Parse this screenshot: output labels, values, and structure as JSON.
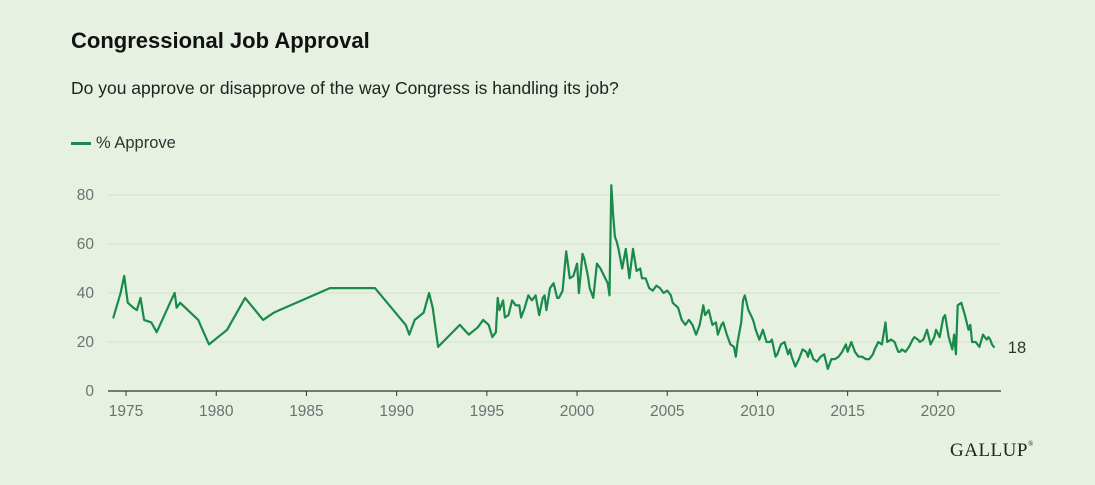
{
  "title": "Congressional Job Approval",
  "subtitle": "Do you approve or disapprove of the way Congress is handling its job?",
  "brand": "GALLUP",
  "colors": {
    "series": "#1a8a4a",
    "grid": "#d4e0d1",
    "axis": "#707070",
    "background": "#e6f1e2"
  },
  "chart_data": {
    "type": "line",
    "xlim": [
      1974,
      2023.5
    ],
    "ylim": [
      0,
      80
    ],
    "x_ticks": [
      "1975",
      "1980",
      "1985",
      "1990",
      "1995",
      "2000",
      "2005",
      "2010",
      "2015",
      "2020"
    ],
    "y_ticks": [
      "0",
      "20",
      "40",
      "60",
      "80"
    ],
    "grid": true,
    "legend_position": "top-left",
    "end_label": "18",
    "series": [
      {
        "name": "% Approve",
        "points": [
          [
            1974.3,
            30
          ],
          [
            1974.7,
            40
          ],
          [
            1974.9,
            47
          ],
          [
            1975.1,
            36
          ],
          [
            1975.4,
            34
          ],
          [
            1975.6,
            33
          ],
          [
            1975.8,
            38
          ],
          [
            1976.0,
            29
          ],
          [
            1976.4,
            28
          ],
          [
            1976.7,
            24
          ],
          [
            1977.5,
            37
          ],
          [
            1977.7,
            40
          ],
          [
            1977.8,
            34
          ],
          [
            1978.0,
            36
          ],
          [
            1979.0,
            29
          ],
          [
            1979.6,
            19
          ],
          [
            1980.6,
            25
          ],
          [
            1981.6,
            38
          ],
          [
            1982.6,
            29
          ],
          [
            1983.2,
            32
          ],
          [
            1983.5,
            33
          ],
          [
            1986.3,
            42
          ],
          [
            1988.8,
            42
          ],
          [
            1990.5,
            27
          ],
          [
            1990.7,
            23
          ],
          [
            1991.0,
            29
          ],
          [
            1991.5,
            32
          ],
          [
            1991.8,
            40
          ],
          [
            1992.0,
            34
          ],
          [
            1992.3,
            18
          ],
          [
            1993.5,
            27
          ],
          [
            1994.0,
            23
          ],
          [
            1994.5,
            26
          ],
          [
            1994.8,
            29
          ],
          [
            1995.1,
            27
          ],
          [
            1995.3,
            22
          ],
          [
            1995.5,
            24
          ],
          [
            1995.6,
            38
          ],
          [
            1995.7,
            33
          ],
          [
            1995.9,
            37
          ],
          [
            1996.0,
            30
          ],
          [
            1996.2,
            31
          ],
          [
            1996.4,
            37
          ],
          [
            1996.6,
            35
          ],
          [
            1996.8,
            35
          ],
          [
            1996.9,
            30
          ],
          [
            1997.1,
            34
          ],
          [
            1997.3,
            39
          ],
          [
            1997.5,
            37
          ],
          [
            1997.7,
            39
          ],
          [
            1997.9,
            31
          ],
          [
            1998.1,
            38
          ],
          [
            1998.2,
            39
          ],
          [
            1998.3,
            33
          ],
          [
            1998.5,
            42
          ],
          [
            1998.7,
            44
          ],
          [
            1998.9,
            38
          ],
          [
            1999.0,
            38
          ],
          [
            1999.2,
            41
          ],
          [
            1999.4,
            57
          ],
          [
            1999.6,
            46
          ],
          [
            1999.8,
            47
          ],
          [
            2000.0,
            52
          ],
          [
            2000.1,
            40
          ],
          [
            2000.3,
            56
          ],
          [
            2000.4,
            54
          ],
          [
            2000.6,
            47
          ],
          [
            2000.7,
            42
          ],
          [
            2000.9,
            38
          ],
          [
            2001.1,
            52
          ],
          [
            2001.3,
            50
          ],
          [
            2001.5,
            47
          ],
          [
            2001.7,
            44
          ],
          [
            2001.8,
            39
          ],
          [
            2001.9,
            84
          ],
          [
            2002.0,
            72
          ],
          [
            2002.1,
            63
          ],
          [
            2002.2,
            61
          ],
          [
            2002.3,
            58
          ],
          [
            2002.5,
            50
          ],
          [
            2002.7,
            58
          ],
          [
            2002.8,
            52
          ],
          [
            2002.9,
            46
          ],
          [
            2003.1,
            58
          ],
          [
            2003.3,
            49
          ],
          [
            2003.5,
            50
          ],
          [
            2003.6,
            46
          ],
          [
            2003.8,
            46
          ],
          [
            2004.0,
            42
          ],
          [
            2004.2,
            41
          ],
          [
            2004.4,
            43
          ],
          [
            2004.6,
            42
          ],
          [
            2004.8,
            40
          ],
          [
            2005.0,
            41
          ],
          [
            2005.2,
            39
          ],
          [
            2005.3,
            36
          ],
          [
            2005.6,
            34
          ],
          [
            2005.8,
            29
          ],
          [
            2006.0,
            27
          ],
          [
            2006.2,
            29
          ],
          [
            2006.4,
            27
          ],
          [
            2006.6,
            23
          ],
          [
            2006.8,
            27
          ],
          [
            2007.0,
            35
          ],
          [
            2007.1,
            31
          ],
          [
            2007.3,
            33
          ],
          [
            2007.5,
            27
          ],
          [
            2007.7,
            28
          ],
          [
            2007.8,
            23
          ],
          [
            2008.0,
            27
          ],
          [
            2008.1,
            28
          ],
          [
            2008.3,
            23
          ],
          [
            2008.5,
            19
          ],
          [
            2008.7,
            18
          ],
          [
            2008.8,
            14
          ],
          [
            2008.9,
            20
          ],
          [
            2009.1,
            28
          ],
          [
            2009.2,
            37
          ],
          [
            2009.3,
            39
          ],
          [
            2009.5,
            33
          ],
          [
            2009.7,
            30
          ],
          [
            2009.8,
            28
          ],
          [
            2009.9,
            25
          ],
          [
            2010.1,
            21
          ],
          [
            2010.3,
            25
          ],
          [
            2010.5,
            20
          ],
          [
            2010.7,
            20
          ],
          [
            2010.8,
            21
          ],
          [
            2011.0,
            14
          ],
          [
            2011.1,
            15
          ],
          [
            2011.3,
            19
          ],
          [
            2011.5,
            20
          ],
          [
            2011.7,
            15
          ],
          [
            2011.8,
            17
          ],
          [
            2011.9,
            14
          ],
          [
            2012.1,
            10
          ],
          [
            2012.3,
            13
          ],
          [
            2012.5,
            17
          ],
          [
            2012.7,
            16
          ],
          [
            2012.8,
            14
          ],
          [
            2012.9,
            17
          ],
          [
            2013.1,
            13
          ],
          [
            2013.3,
            12
          ],
          [
            2013.5,
            14
          ],
          [
            2013.7,
            15
          ],
          [
            2013.8,
            12
          ],
          [
            2013.9,
            9
          ],
          [
            2014.1,
            13
          ],
          [
            2014.3,
            13
          ],
          [
            2014.5,
            14
          ],
          [
            2014.7,
            16
          ],
          [
            2014.9,
            19
          ],
          [
            2015.0,
            16
          ],
          [
            2015.2,
            20
          ],
          [
            2015.4,
            16
          ],
          [
            2015.6,
            14
          ],
          [
            2015.8,
            14
          ],
          [
            2016.0,
            13
          ],
          [
            2016.2,
            13
          ],
          [
            2016.4,
            15
          ],
          [
            2016.5,
            17
          ],
          [
            2016.7,
            20
          ],
          [
            2016.9,
            19
          ],
          [
            2017.1,
            28
          ],
          [
            2017.2,
            20
          ],
          [
            2017.4,
            21
          ],
          [
            2017.6,
            20
          ],
          [
            2017.8,
            16
          ],
          [
            2017.9,
            16
          ],
          [
            2018.0,
            17
          ],
          [
            2018.2,
            16
          ],
          [
            2018.4,
            18
          ],
          [
            2018.6,
            21
          ],
          [
            2018.7,
            22
          ],
          [
            2018.9,
            21
          ],
          [
            2019.0,
            20
          ],
          [
            2019.2,
            21
          ],
          [
            2019.4,
            25
          ],
          [
            2019.6,
            19
          ],
          [
            2019.8,
            22
          ],
          [
            2019.9,
            25
          ],
          [
            2020.1,
            22
          ],
          [
            2020.3,
            30
          ],
          [
            2020.4,
            31
          ],
          [
            2020.6,
            22
          ],
          [
            2020.8,
            17
          ],
          [
            2020.9,
            23
          ],
          [
            2021.0,
            15
          ],
          [
            2021.1,
            35
          ],
          [
            2021.3,
            36
          ],
          [
            2021.5,
            31
          ],
          [
            2021.7,
            25
          ],
          [
            2021.8,
            27
          ],
          [
            2021.9,
            20
          ],
          [
            2022.1,
            20
          ],
          [
            2022.3,
            18
          ],
          [
            2022.5,
            23
          ],
          [
            2022.7,
            21
          ],
          [
            2022.8,
            22
          ],
          [
            2022.9,
            21
          ],
          [
            2023.0,
            19
          ],
          [
            2023.1,
            18
          ]
        ]
      }
    ]
  }
}
